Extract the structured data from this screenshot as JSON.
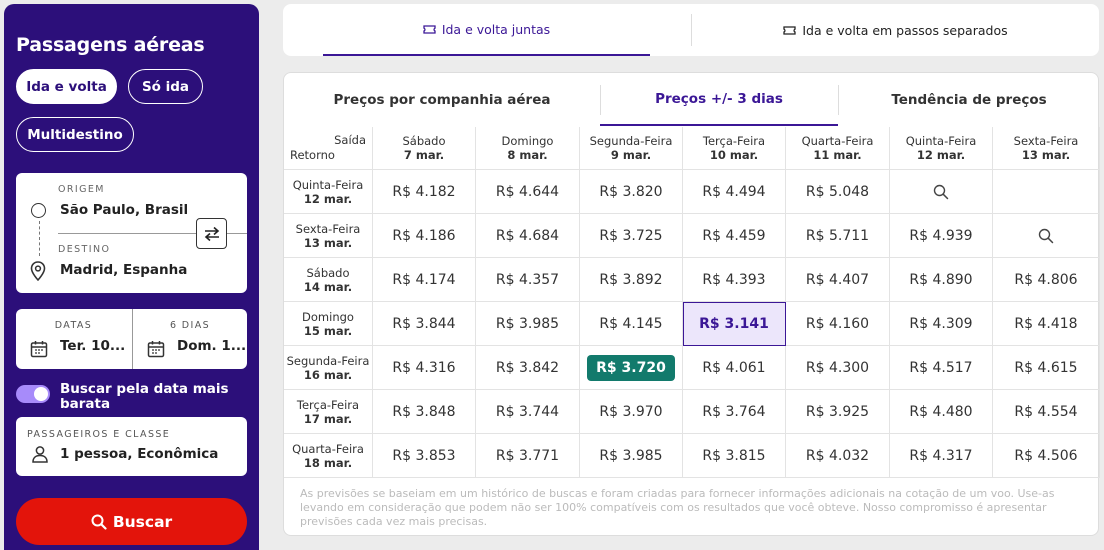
{
  "sidebar": {
    "title": "Passagens aéreas",
    "trip_types": [
      "Ida e volta",
      "Só ida",
      "Multidestino"
    ],
    "origin_label": "ORIGEM",
    "origin_value": "São Paulo, Brasil",
    "destination_label": "DESTINO",
    "destination_value": "Madrid, Espanha",
    "dates_label": "DATAS",
    "dates_value": "Ter. 10...",
    "days_label": "6 DIAS",
    "days_value": "Dom. 1...",
    "toggle_label": "Buscar pela data mais barata",
    "toggle_on": true,
    "pax_label": "PASSAGEIROS E CLASSE",
    "pax_value": "1 pessoa, Econômica",
    "search_button": "Buscar"
  },
  "top_tabs": [
    "Ida e volta juntas",
    "Ida e volta em passos separados"
  ],
  "sub_tabs": [
    "Preços por companhia aérea",
    "Preços +/- 3 dias",
    "Tendência de preços"
  ],
  "grid": {
    "corner_departure": "Saída",
    "corner_return": "Retorno",
    "columns": [
      {
        "day": "Sábado",
        "date": "7 mar."
      },
      {
        "day": "Domingo",
        "date": "8 mar."
      },
      {
        "day": "Segunda-Feira",
        "date": "9 mar."
      },
      {
        "day": "Terça-Feira",
        "date": "10 mar."
      },
      {
        "day": "Quarta-Feira",
        "date": "11 mar."
      },
      {
        "day": "Quinta-Feira",
        "date": "12 mar."
      },
      {
        "day": "Sexta-Feira",
        "date": "13 mar."
      }
    ],
    "rows": [
      {
        "day": "Quinta-Feira",
        "date": "12 mar.",
        "prices": [
          "R$ 4.182",
          "R$ 4.644",
          "R$ 3.820",
          "R$ 4.494",
          "R$ 5.048",
          "search",
          ""
        ]
      },
      {
        "day": "Sexta-Feira",
        "date": "13 mar.",
        "prices": [
          "R$ 4.186",
          "R$ 4.684",
          "R$ 3.725",
          "R$ 4.459",
          "R$ 5.711",
          "R$ 4.939",
          "search"
        ]
      },
      {
        "day": "Sábado",
        "date": "14 mar.",
        "prices": [
          "R$ 4.174",
          "R$ 4.357",
          "R$ 3.892",
          "R$ 4.393",
          "R$ 4.407",
          "R$ 4.890",
          "R$ 4.806"
        ]
      },
      {
        "day": "Domingo",
        "date": "15 mar.",
        "prices": [
          "R$ 3.844",
          "R$ 3.985",
          "R$ 4.145",
          "R$ 3.141",
          "R$ 4.160",
          "R$ 4.309",
          "R$ 4.418"
        ]
      },
      {
        "day": "Segunda-Feira",
        "date": "16 mar.",
        "prices": [
          "R$ 4.316",
          "R$ 3.842",
          "R$ 3.720",
          "R$ 4.061",
          "R$ 4.300",
          "R$ 4.517",
          "R$ 4.615"
        ]
      },
      {
        "day": "Terça-Feira",
        "date": "17 mar.",
        "prices": [
          "R$ 3.848",
          "R$ 3.744",
          "R$ 3.970",
          "R$ 3.764",
          "R$ 3.925",
          "R$ 4.480",
          "R$ 4.554"
        ]
      },
      {
        "day": "Quarta-Feira",
        "date": "18 mar.",
        "prices": [
          "R$ 3.853",
          "R$ 3.771",
          "R$ 3.985",
          "R$ 3.815",
          "R$ 4.032",
          "R$ 4.317",
          "R$ 4.506"
        ]
      }
    ],
    "selected": {
      "row": 3,
      "col": 3
    },
    "best": {
      "row": 4,
      "col": 2
    }
  },
  "note": "As previsões se baseiam em um histórico de buscas e foram criadas para fornecer informações adicionais na cotação de um voo. Use-as levando em consideração que podem não ser 100% compatíveis com os resultados que você obteve. Nosso compromisso é apresentar previsões cada vez mais precisas.",
  "colors": {
    "sidebar_bg": "#2c0f7a",
    "accent": "#3b1796",
    "best_price": "#127a6c",
    "search_button": "#e3140b"
  }
}
